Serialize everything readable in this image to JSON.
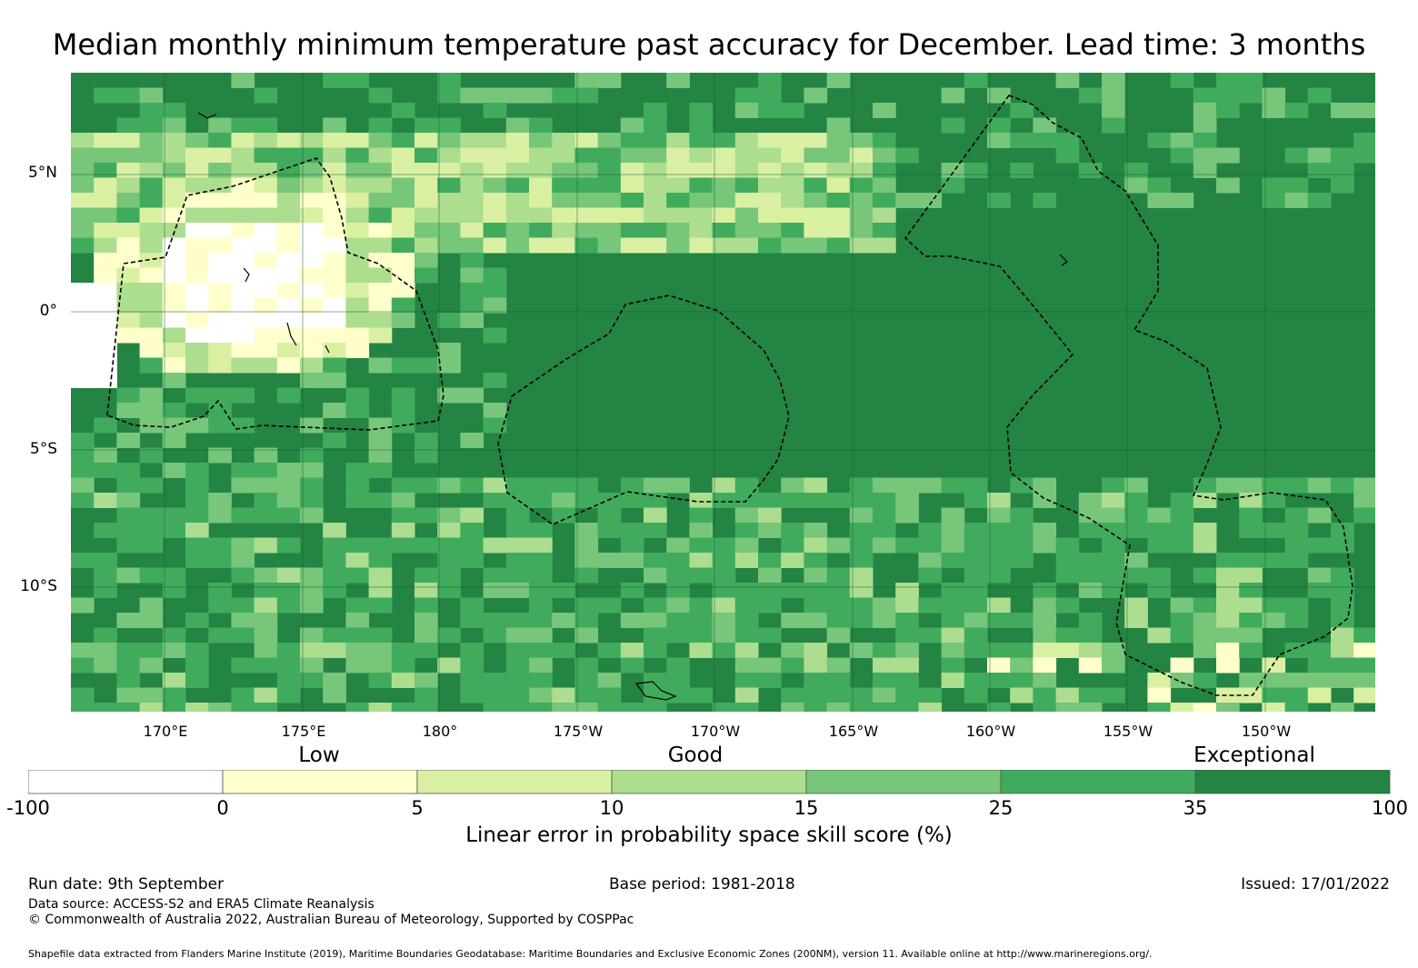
{
  "title": "Median monthly minimum temperature past accuracy for December. Lead time: 3 months",
  "map": {
    "lat_labels": [
      "5°N",
      "0°",
      "5°S",
      "10°S"
    ],
    "lon_labels": [
      "170°E",
      "175°E",
      "180°",
      "175°W",
      "170°W",
      "165°W",
      "160°W",
      "155°W",
      "150°W"
    ],
    "background_color": "#238443",
    "grid_color": "#1a5e30"
  },
  "legend": {
    "categories": [
      "Low",
      "Good",
      "Exceptional"
    ],
    "ticks": [
      "-100",
      "0",
      "5",
      "10",
      "15",
      "25",
      "35",
      "100"
    ],
    "colors": [
      "#ffffff",
      "#ffffcc",
      "#d9f0a3",
      "#addd8e",
      "#78c679",
      "#41ab5d",
      "#238443"
    ],
    "title": "Linear error in probability space skill score (%)"
  },
  "footer": {
    "run_date": "Run date: 9th September",
    "base_period": "Base period: 1981-2018",
    "issued": "Issued: 17/01/2022",
    "data_source": "Data source: ACCESS-S2 and ERA5 Climate Reanalysis",
    "copyright": "© Commonwealth of Australia 2022, Australian Bureau of Meteorology, Supported by COSPPac",
    "shapefile_note": "Shapefile data extracted from Flanders Marine Institute (2019), Maritime Boundaries Geodatabase: Maritime Boundaries and Exclusive Economic Zones (200NM), version 11. Available online at http://www.marineregions.org/."
  }
}
